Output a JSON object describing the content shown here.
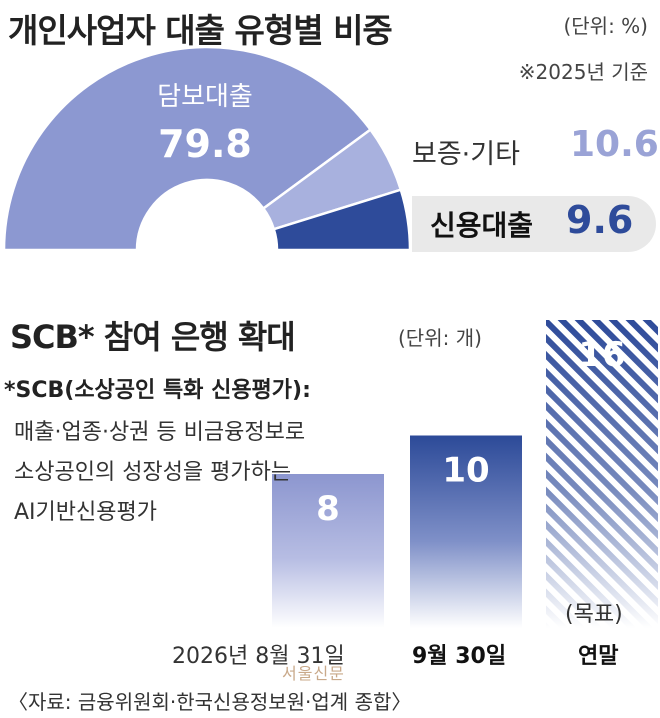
{
  "header": {
    "title": "개인사업자 대출 유형별 비중",
    "unit": "(단위: %)",
    "basis": "※2025년 기준"
  },
  "section2": {
    "title": "SCB* 참여 은행 확대",
    "unit": "(단위: 개)",
    "note_title": "*SCB(소상공인 특화 신용평가):",
    "note_lines": [
      "매출·업종·상권 등 비금융정보로",
      "소상공인의 성장성을 평가하는",
      "AI기반신용평가"
    ],
    "target_label": "(목표)"
  },
  "footer": {
    "source": "〈자료: 금융위원회·한국신용정보원·업계 종합〉",
    "watermark": "서울신문"
  },
  "colors": {
    "mortgage": "#8c98d1",
    "guarantee": "#a8b1de",
    "credit": "#2e4b9a",
    "bar_light": "#8c96cf",
    "bar_dark": "#2c4a98",
    "bar_hatch": "#2e4b9a"
  },
  "chart_data": [
    {
      "type": "pie",
      "title": "개인사업자 대출 유형별 비중",
      "unit": "%",
      "slices": [
        {
          "name": "담보대출",
          "value": 79.8
        },
        {
          "name": "보증·기타",
          "value": 10.6
        },
        {
          "name": "신용대출",
          "value": 9.6
        }
      ]
    },
    {
      "type": "bar",
      "title": "SCB* 참여 은행 확대",
      "unit": "개",
      "categories": [
        "2026년 8월 31일",
        "9월 30일",
        "연말"
      ],
      "values": [
        8,
        10,
        16
      ],
      "notes": [
        "",
        "",
        "(목표)"
      ]
    }
  ]
}
